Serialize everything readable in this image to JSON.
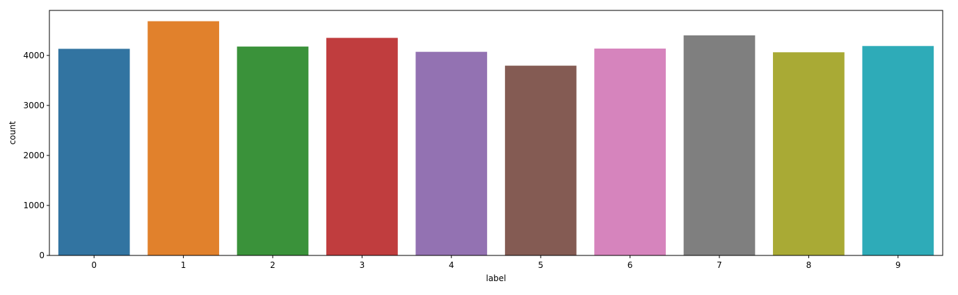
{
  "chart_data": {
    "type": "bar",
    "categories": [
      "0",
      "1",
      "2",
      "3",
      "4",
      "5",
      "6",
      "7",
      "8",
      "9"
    ],
    "values": [
      4132,
      4684,
      4177,
      4351,
      4072,
      3795,
      4137,
      4401,
      4063,
      4188
    ],
    "colors": [
      "#3274a1",
      "#e1812c",
      "#3a923a",
      "#c03d3e",
      "#9372b2",
      "#845b53",
      "#d684bd",
      "#7f7f7f",
      "#a9aa35",
      "#2eabb8"
    ],
    "title": "",
    "xlabel": "label",
    "ylabel": "count",
    "ylim": [
      0,
      4900
    ],
    "yticks": [
      0,
      1000,
      2000,
      3000,
      4000
    ],
    "ytick_labels": [
      "0",
      "1000",
      "2000",
      "3000",
      "4000"
    ],
    "grid": false,
    "legend": "none"
  }
}
